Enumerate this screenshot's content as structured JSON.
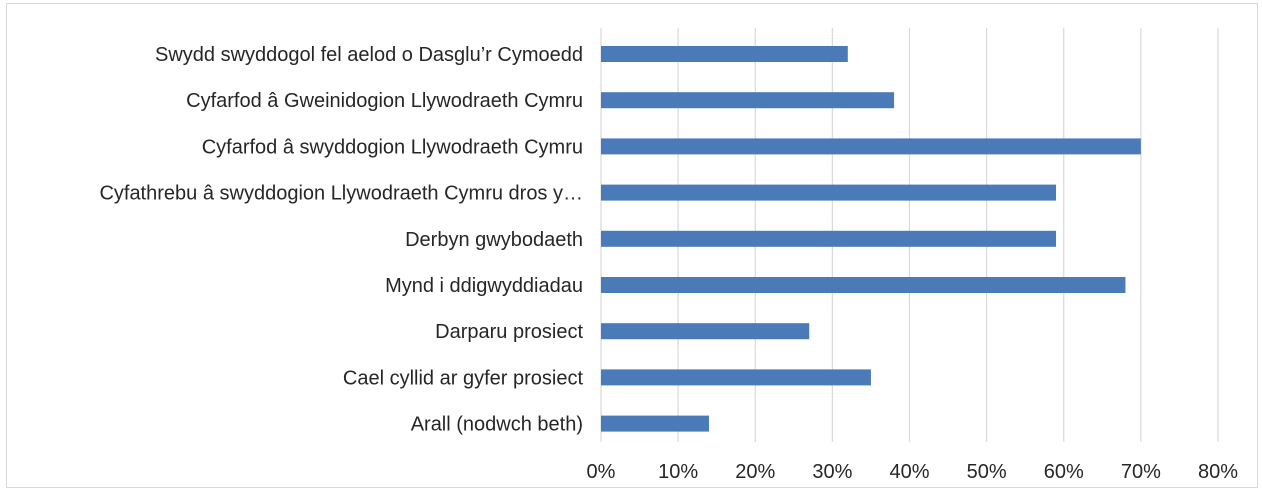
{
  "chart_data": {
    "type": "bar",
    "orientation": "horizontal",
    "categories": [
      "Swydd swyddogol fel aelod o Dasglu’r Cymoedd",
      "Cyfarfod â Gweinidogion Llywodraeth Cymru",
      "Cyfarfod â swyddogion Llywodraeth Cymru",
      "Cyfathrebu â swyddogion Llywodraeth Cymru dros y…",
      "Derbyn gwybodaeth",
      "Mynd i ddigwyddiadau",
      "Darparu prosiect",
      "Cael cyllid ar gyfer prosiect",
      "Arall (nodwch beth)"
    ],
    "values": [
      32,
      38,
      70,
      59,
      59,
      68,
      27,
      35,
      14
    ],
    "xlim": [
      0,
      80
    ],
    "xticks": [
      "0%",
      "10%",
      "20%",
      "30%",
      "40%",
      "50%",
      "60%",
      "70%",
      "80%"
    ],
    "grid": true,
    "bar_color": "#4a7ab8",
    "grid_color": "#d9d9d9",
    "title": "",
    "xlabel": "",
    "ylabel": ""
  }
}
